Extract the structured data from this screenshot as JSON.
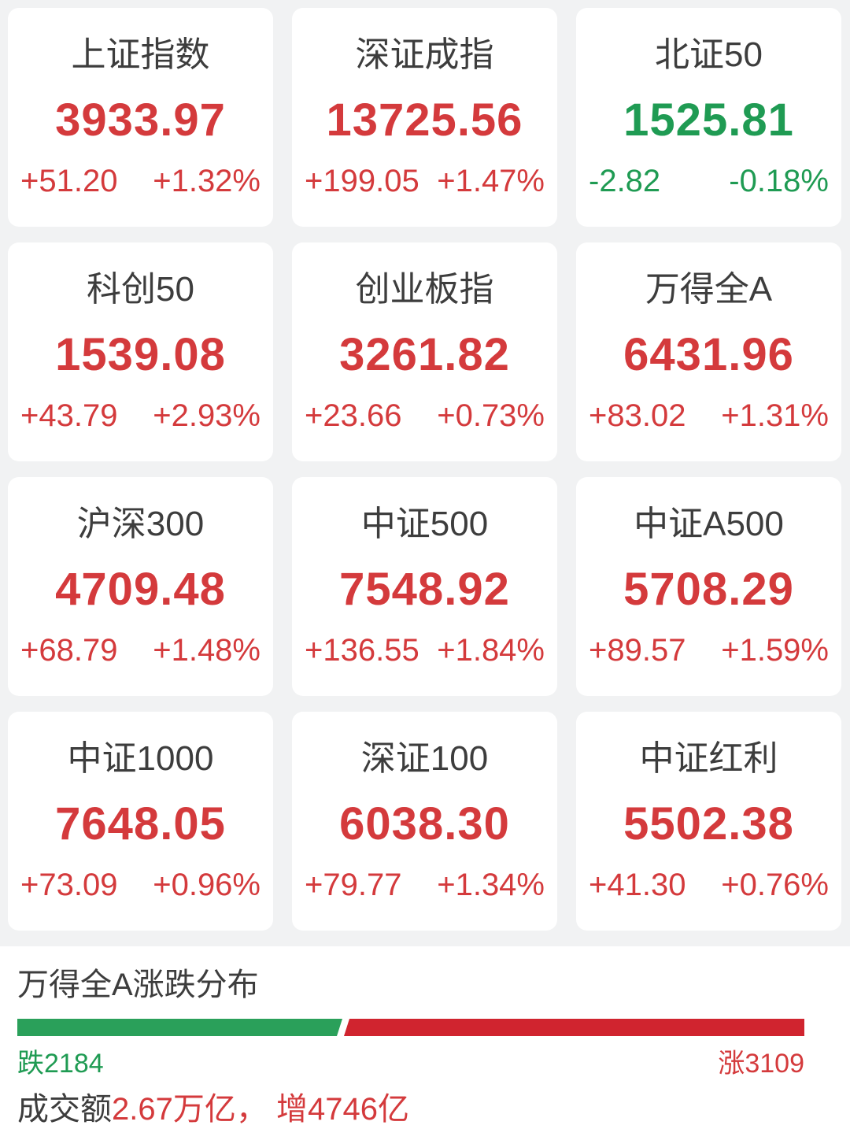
{
  "colors": {
    "up": "#d43a3c",
    "down": "#1f9b53",
    "bar_up": "#d0242f",
    "bar_down": "#2aa05a",
    "title": "#3d3d3d",
    "page_bg": "#f1f2f3",
    "card_bg": "#ffffff"
  },
  "cards": [
    {
      "name": "上证指数",
      "value": "3933.97",
      "change": "+51.20",
      "pct": "+1.32%",
      "direction": "up"
    },
    {
      "name": "深证成指",
      "value": "13725.56",
      "change": "+199.05",
      "pct": "+1.47%",
      "direction": "up"
    },
    {
      "name": "北证50",
      "value": "1525.81",
      "change": "-2.82",
      "pct": "-0.18%",
      "direction": "down"
    },
    {
      "name": "科创50",
      "value": "1539.08",
      "change": "+43.79",
      "pct": "+2.93%",
      "direction": "up"
    },
    {
      "name": "创业板指",
      "value": "3261.82",
      "change": "+23.66",
      "pct": "+0.73%",
      "direction": "up"
    },
    {
      "name": "万得全A",
      "value": "6431.96",
      "change": "+83.02",
      "pct": "+1.31%",
      "direction": "up"
    },
    {
      "name": "沪深300",
      "value": "4709.48",
      "change": "+68.79",
      "pct": "+1.48%",
      "direction": "up"
    },
    {
      "name": "中证500",
      "value": "7548.92",
      "change": "+136.55",
      "pct": "+1.84%",
      "direction": "up"
    },
    {
      "name": "中证A500",
      "value": "5708.29",
      "change": "+89.57",
      "pct": "+1.59%",
      "direction": "up"
    },
    {
      "name": "中证1000",
      "value": "7648.05",
      "change": "+73.09",
      "pct": "+0.96%",
      "direction": "up"
    },
    {
      "name": "深证100",
      "value": "6038.30",
      "change": "+79.77",
      "pct": "+1.34%",
      "direction": "up"
    },
    {
      "name": "中证红利",
      "value": "5502.38",
      "change": "+41.30",
      "pct": "+0.76%",
      "direction": "up"
    }
  ],
  "distribution": {
    "title": "万得全A涨跌分布",
    "down_label": "跌2184",
    "up_label": "涨3109",
    "down_count": 2184,
    "up_count": 3109,
    "turnover_prefix": "成交额",
    "turnover_value": "2.67万亿， 增4746亿"
  },
  "chart_data": {
    "type": "bar",
    "title": "万得全A涨跌分布",
    "categories": [
      "跌 (decliners)",
      "涨 (advancers)"
    ],
    "values": [
      2184,
      3109
    ],
    "colors": [
      "#2aa05a",
      "#d0242f"
    ],
    "layout": "horizontal-stacked-full-width",
    "legend_position": "below-bar-ends"
  }
}
